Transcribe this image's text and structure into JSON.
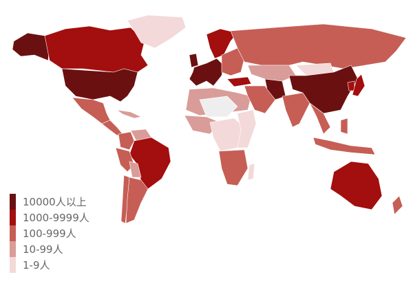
{
  "legend": {
    "items": [
      {
        "label": "10000人以上",
        "color": "#6b1010"
      },
      {
        "label": "1000-9999人",
        "color": "#a30e0e"
      },
      {
        "label": "100-999人",
        "color": "#c65e55"
      },
      {
        "label": "10-99人",
        "color": "#d99c98"
      },
      {
        "label": "1-9人",
        "color": "#f3d9d9"
      }
    ],
    "no_data_color": "#eeeeee"
  },
  "region_levels": {
    "alaska": 0,
    "canada": 1,
    "greenland": 4,
    "usa": 0,
    "mexico": 2,
    "central-america": 2,
    "caribbean": 3,
    "colombia": 2,
    "venezuela": 3,
    "brazil": 1,
    "peru": 2,
    "bolivia": 3,
    "chile": 2,
    "argentina": 2,
    "western-europe": 0,
    "uk": 0,
    "scandinavia": 1,
    "eastern-europe": 2,
    "russia": 2,
    "turkey": 1,
    "north-africa": 3,
    "west-africa": 3,
    "central-africa": 4,
    "east-africa": 4,
    "sahara": -1,
    "southern-africa": 2,
    "madagascar": 4,
    "middle-east": 2,
    "iran": 0,
    "central-asia": 3,
    "india": 2,
    "china": 0,
    "mongolia": 4,
    "korea": 1,
    "japan": 1,
    "southeast-asia": 2,
    "indonesia": 2,
    "philippines": 2,
    "australia": 1,
    "new-zealand": 2
  }
}
